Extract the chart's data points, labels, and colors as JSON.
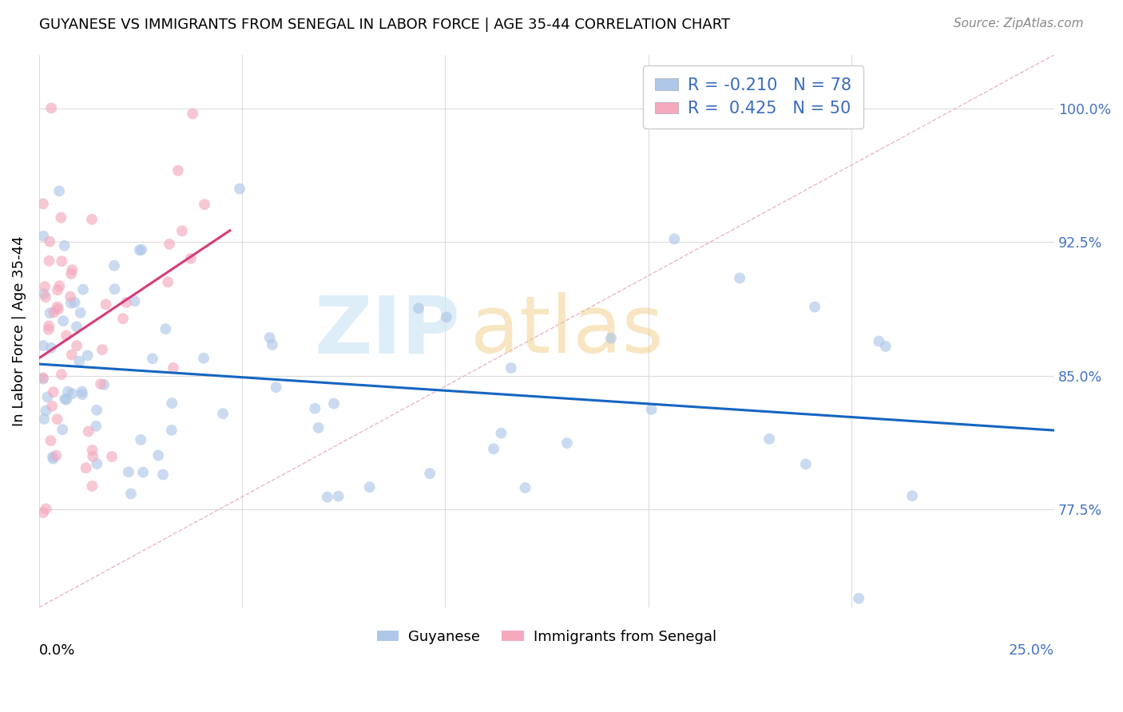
{
  "title": "GUYANESE VS IMMIGRANTS FROM SENEGAL IN LABOR FORCE | AGE 35-44 CORRELATION CHART",
  "source": "Source: ZipAtlas.com",
  "ylabel": "In Labor Force | Age 35-44",
  "xlim": [
    0.0,
    0.25
  ],
  "ylim": [
    0.72,
    1.03
  ],
  "color_blue": "#aec7e8",
  "color_pink": "#f4a9be",
  "color_blue_line": "#1565c0",
  "color_pink_line": "#d63b7a",
  "color_diag": "#e8b0bc",
  "color_ytick": "#4472c4",
  "r_guy": -0.21,
  "n_guy": 78,
  "r_sen": 0.425,
  "n_sen": 50,
  "ytick_vals": [
    0.775,
    0.85,
    0.925,
    1.0
  ],
  "ytick_labels": [
    "77.5%",
    "85.0%",
    "92.5%",
    "100.0%"
  ],
  "background_color": "#ffffff",
  "legend_label1": "R = -0.210   N = 78",
  "legend_label2": "R =  0.425   N = 50",
  "bottom_label1": "Guyanese",
  "bottom_label2": "Immigrants from Senegal"
}
